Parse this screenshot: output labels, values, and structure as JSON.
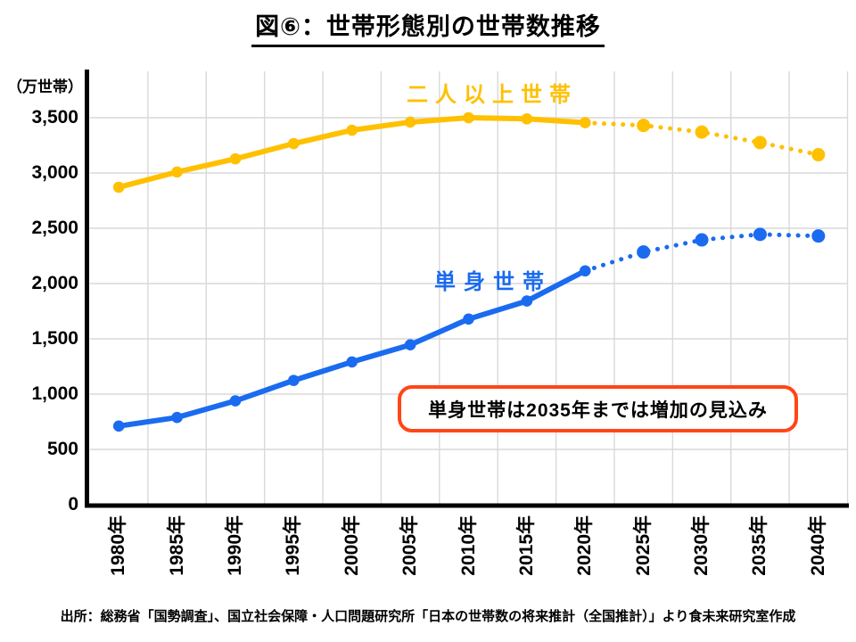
{
  "title": "図⑥：世帯形態別の世帯数推移",
  "y_axis_unit": "（万世帯）",
  "annotation": {
    "text": "単身世帯は2035年までは増加の見込み",
    "border_color": "#FF4616"
  },
  "source": "出所：総務省「国勢調査」、国立社会保障・人口問題研究所「日本の世帯数の将来推計（全国推計）」より食未来研究室作成",
  "colors": {
    "two_plus_series": "#FFC000",
    "single_series": "#1A6BF0",
    "gridline": "#D9D9D9",
    "axis": "#000000"
  },
  "chart_data": {
    "type": "line",
    "title": "図⑥：世帯形態別の世帯数推移",
    "xlabel": "",
    "ylabel": "（万世帯）",
    "categories": [
      "1980年",
      "1985年",
      "1990年",
      "1995年",
      "2000年",
      "2005年",
      "2010年",
      "2015年",
      "2020年",
      "2025年",
      "2030年",
      "2035年",
      "2040年"
    ],
    "series": [
      {
        "name": "二人以上世帯",
        "color": "#FFC000",
        "values": [
          2871,
          3009,
          3128,
          3266,
          3387,
          3460,
          3500,
          3490,
          3455,
          3430,
          3370,
          3275,
          3165
        ],
        "line_style": "solid through 2020年, dotted projection from 2020年 to 2040年"
      },
      {
        "name": "単身世帯",
        "color": "#1A6BF0",
        "values": [
          711,
          789,
          939,
          1124,
          1291,
          1446,
          1679,
          1842,
          2115,
          2285,
          2395,
          2445,
          2430
        ],
        "line_style": "solid through 2020年, dotted projection from 2020年 to 2040年"
      }
    ],
    "solid_until_index": 8,
    "ylim": [
      0,
      3900
    ],
    "ytick_step": 500,
    "grid": true,
    "legend_position": "inline labels above each line",
    "yticks": [
      {
        "value": 3500,
        "label": "3,500"
      },
      {
        "value": 3000,
        "label": "3,000"
      },
      {
        "value": 2500,
        "label": "2,500"
      },
      {
        "value": 2000,
        "label": "2,000"
      },
      {
        "value": 1500,
        "label": "1,500"
      },
      {
        "value": 1000,
        "label": "1,000"
      },
      {
        "value": 500,
        "label": "500"
      },
      {
        "value": 0,
        "label": "0"
      }
    ]
  }
}
